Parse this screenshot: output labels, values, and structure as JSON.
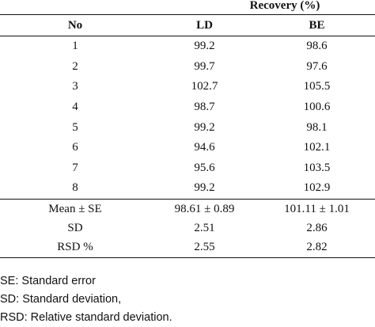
{
  "table": {
    "group_header": "Recovery (%)",
    "columns": [
      "No",
      "LD",
      "BE"
    ],
    "rows": [
      [
        "1",
        "99.2",
        "98.6"
      ],
      [
        "2",
        "99.7",
        "97.6"
      ],
      [
        "3",
        "102.7",
        "105.5"
      ],
      [
        "4",
        "98.7",
        "100.6"
      ],
      [
        "5",
        "99.2",
        "98.1"
      ],
      [
        "6",
        "94.6",
        "102.1"
      ],
      [
        "7",
        "95.6",
        "103.5"
      ],
      [
        "8",
        "99.2",
        "102.9"
      ]
    ],
    "stats": [
      [
        "Mean ± SE",
        "98.61 ± 0.89",
        "101.11 ± 1.01"
      ],
      [
        "SD",
        "2.51",
        "2.86"
      ],
      [
        "RSD %",
        "2.55",
        "2.82"
      ]
    ]
  },
  "footnotes": [
    "SE: Standard error",
    "SD: Standard deviation,",
    "RSD: Relative standard deviation."
  ]
}
